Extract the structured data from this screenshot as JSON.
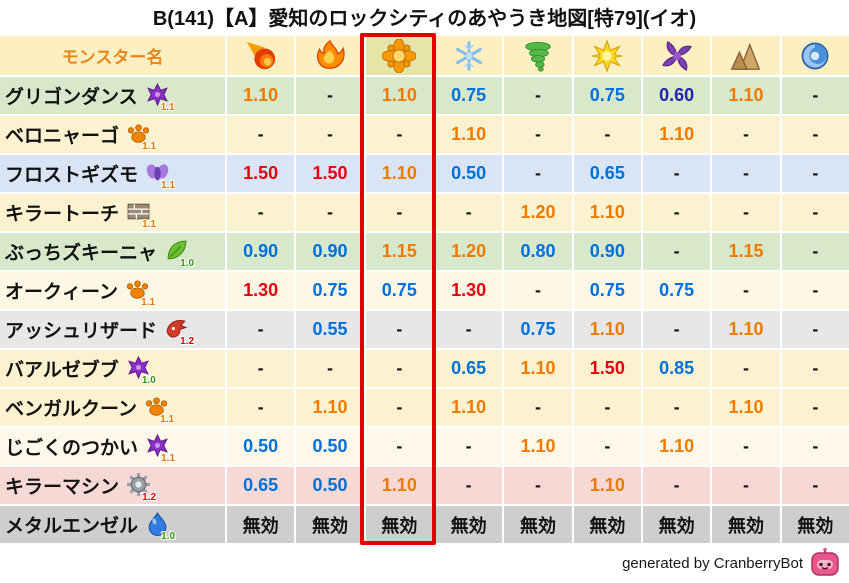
{
  "title": "B(141)【A】愛知のロックシティのあやうき地図[特79](イオ)",
  "footer": {
    "credit": "generated by CranberryBot",
    "bot_icon": "cranberrybot-icon"
  },
  "palette": {
    "value_colors": {
      "r": "#e60012",
      "o": "#ef7a00",
      "b": "#0070dc",
      "n": "#2424aa",
      "k": "#111111",
      "d": "#1a1a1a"
    },
    "level_colors": {
      "1.0": "#2f9a0e",
      "1.1": "#e07800",
      "1.2": "#e00000"
    },
    "header_bg": "#fcefc2",
    "header_text": "#e8871c",
    "highlight_border": "#e30000",
    "highlight_tint": "rgba(139,181,58,0.20)"
  },
  "chart_data": {
    "type": "table",
    "title": "B(141)【A】愛知のロックシティのあやうき地図[特79](イオ)",
    "name_column_header": "モンスター名",
    "highlight_column_index": 2,
    "highlight_label": "イオ",
    "element_columns": [
      {
        "icon": "fireball-icon"
      },
      {
        "icon": "flame-icon"
      },
      {
        "icon": "starburst-icon"
      },
      {
        "icon": "snowflake-icon"
      },
      {
        "icon": "tornado-icon"
      },
      {
        "icon": "sunburst-icon"
      },
      {
        "icon": "pinwheel-icon"
      },
      {
        "icon": "mountain-icon"
      },
      {
        "icon": "swirl-icon"
      }
    ],
    "rows": [
      {
        "name": "グリゴンダンス",
        "type_icon": "demon-icon",
        "level": "1.1",
        "bg": "#d8e8cb",
        "values": [
          "1.10",
          "-",
          "1.10",
          "0.75",
          "-",
          "0.75",
          "0.60",
          "1.10",
          "-"
        ],
        "colors": [
          "o",
          "d",
          "o",
          "b",
          "d",
          "b",
          "n",
          "o",
          "d"
        ]
      },
      {
        "name": "ベロニャーゴ",
        "type_icon": "paw-icon",
        "level": "1.1",
        "bg": "#fcf2d0",
        "values": [
          "-",
          "-",
          "-",
          "1.10",
          "-",
          "-",
          "1.10",
          "-",
          "-"
        ],
        "colors": [
          "d",
          "d",
          "d",
          "o",
          "d",
          "d",
          "o",
          "d",
          "d"
        ]
      },
      {
        "name": "フロストギズモ",
        "type_icon": "spirit-icon",
        "level": "1.1",
        "bg": "#d9e4f5",
        "values": [
          "1.50",
          "1.50",
          "1.10",
          "0.50",
          "-",
          "0.65",
          "-",
          "-",
          "-"
        ],
        "colors": [
          "r",
          "r",
          "o",
          "b",
          "d",
          "b",
          "d",
          "d",
          "d"
        ]
      },
      {
        "name": "キラートーチ",
        "type_icon": "brick-icon",
        "level": "1.1",
        "bg": "#fcf2d0",
        "values": [
          "-",
          "-",
          "-",
          "-",
          "1.20",
          "1.10",
          "-",
          "-",
          "-"
        ],
        "colors": [
          "d",
          "d",
          "d",
          "d",
          "o",
          "o",
          "d",
          "d",
          "d"
        ]
      },
      {
        "name": "ぶっちズキーニャ",
        "type_icon": "leaf-icon",
        "level": "1.0",
        "bg": "#d8e8cb",
        "values": [
          "0.90",
          "0.90",
          "1.15",
          "1.20",
          "0.80",
          "0.90",
          "-",
          "1.15",
          "-"
        ],
        "colors": [
          "b",
          "b",
          "o",
          "o",
          "b",
          "b",
          "d",
          "o",
          "d"
        ]
      },
      {
        "name": "オークィーン",
        "type_icon": "paw-icon",
        "level": "1.1",
        "bg": "#fdf7e4",
        "values": [
          "1.30",
          "0.75",
          "0.75",
          "1.30",
          "-",
          "0.75",
          "0.75",
          "-",
          "-"
        ],
        "colors": [
          "r",
          "b",
          "b",
          "r",
          "d",
          "b",
          "b",
          "d",
          "d"
        ]
      },
      {
        "name": "アッシュリザード",
        "type_icon": "dragon-icon",
        "level": "1.2",
        "bg": "#e7e7ea",
        "values": [
          "-",
          "0.55",
          "-",
          "-",
          "0.75",
          "1.10",
          "-",
          "1.10",
          "-"
        ],
        "colors": [
          "d",
          "b",
          "d",
          "d",
          "b",
          "o",
          "d",
          "o",
          "d"
        ]
      },
      {
        "name": "バアルゼブブ",
        "type_icon": "demon-icon",
        "level": "1.0",
        "bg": "#fcf2d0",
        "values": [
          "-",
          "-",
          "-",
          "0.65",
          "1.10",
          "1.50",
          "0.85",
          "-",
          "-"
        ],
        "colors": [
          "d",
          "d",
          "d",
          "b",
          "o",
          "r",
          "b",
          "d",
          "d"
        ]
      },
      {
        "name": "ベンガルクーン",
        "type_icon": "paw-icon",
        "level": "1.1",
        "bg": "#fcf2d0",
        "values": [
          "-",
          "1.10",
          "-",
          "1.10",
          "-",
          "-",
          "-",
          "1.10",
          "-"
        ],
        "colors": [
          "d",
          "o",
          "d",
          "o",
          "d",
          "d",
          "d",
          "o",
          "d"
        ]
      },
      {
        "name": "じごくのつかい",
        "type_icon": "demon-icon",
        "level": "1.1",
        "bg": "#fdf8ea",
        "values": [
          "0.50",
          "0.50",
          "-",
          "-",
          "1.10",
          "-",
          "1.10",
          "-",
          "-"
        ],
        "colors": [
          "b",
          "b",
          "d",
          "d",
          "o",
          "d",
          "o",
          "d",
          "d"
        ]
      },
      {
        "name": "キラーマシン",
        "type_icon": "gear-icon",
        "level": "1.2",
        "bg": "#f6d9d5",
        "values": [
          "0.65",
          "0.50",
          "1.10",
          "-",
          "-",
          "1.10",
          "-",
          "-",
          "-"
        ],
        "colors": [
          "b",
          "b",
          "o",
          "d",
          "d",
          "o",
          "d",
          "d",
          "d"
        ]
      },
      {
        "name": "メタルエンゼル",
        "type_icon": "slime-icon",
        "level": "1.0",
        "bg": "#cecece",
        "values": [
          "無効",
          "無効",
          "無効",
          "無効",
          "無効",
          "無効",
          "無効",
          "無効",
          "無効"
        ],
        "colors": [
          "k",
          "k",
          "k",
          "k",
          "k",
          "k",
          "k",
          "k",
          "k"
        ]
      }
    ]
  }
}
